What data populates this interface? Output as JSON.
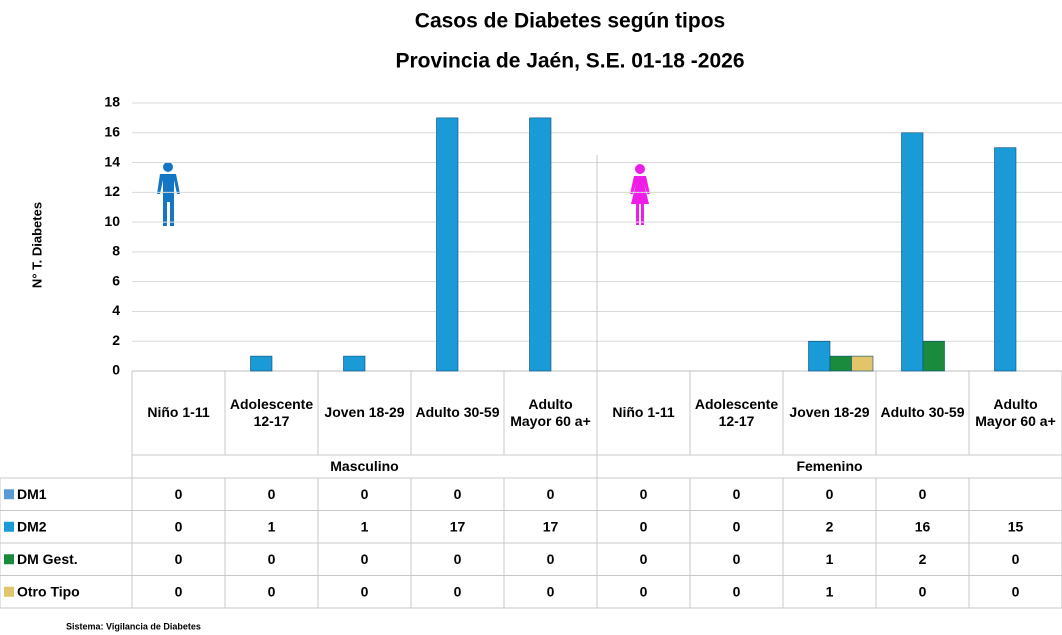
{
  "chart_data": {
    "type": "bar",
    "title": "Casos de Diabetes según tipos",
    "subtitle": "Provincia de Jaén, S.E. 01-18 -2026",
    "ylabel": "N° T. Diabetes",
    "groups": [
      "Masculino",
      "Femenino"
    ],
    "categories": [
      "Niño 1-11",
      "Adolescente 12-17",
      "Joven 18-29",
      "Adulto 30-59",
      "Adulto Mayor 60 a+",
      "Niño 1-11",
      "Adolescente 12-17",
      "Joven 18-29",
      "Adulto 30-59",
      "Adulto Mayor 60 a+"
    ],
    "series": [
      {
        "name": "DM1",
        "color": "#5b9bd5",
        "values": [
          0,
          0,
          0,
          0,
          0,
          0,
          0,
          0,
          0,
          null
        ]
      },
      {
        "name": "DM2",
        "color": "#1a9ad6",
        "values": [
          0,
          1,
          1,
          17,
          17,
          0,
          0,
          2,
          16,
          15
        ]
      },
      {
        "name": "DM Gest.",
        "color": "#1a8a3c",
        "values": [
          0,
          0,
          0,
          0,
          0,
          0,
          0,
          1,
          2,
          0
        ]
      },
      {
        "name": "Otro Tipo",
        "color": "#e2c46a",
        "values": [
          0,
          0,
          0,
          0,
          0,
          0,
          0,
          1,
          0,
          0
        ]
      }
    ],
    "ylim": [
      0,
      18
    ],
    "yticks": [
      0,
      2,
      4,
      6,
      8,
      10,
      12,
      14,
      16,
      18
    ],
    "grid": true,
    "source": "Sistema: Vigilancia de Diabetes"
  }
}
